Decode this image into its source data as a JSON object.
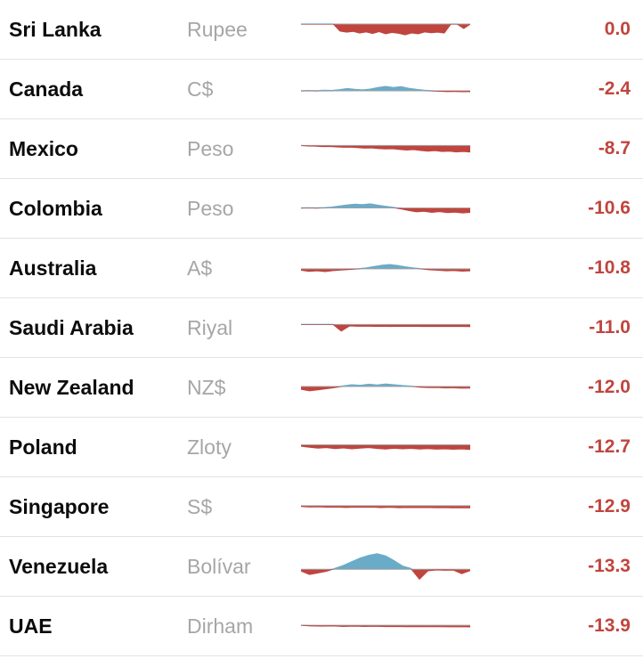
{
  "colors": {
    "negative": "#c0453e",
    "positive": "#6aabc8",
    "baseline": "#a0a0a0",
    "divider": "#e3e3e3",
    "currency_text": "#a6a6a6",
    "country_text": "#0c0c0c"
  },
  "chart_data": {
    "type": "table",
    "columns": [
      "country",
      "currency",
      "trend_sparkline",
      "pct_change"
    ],
    "sparkline_type": "area",
    "sparkline_baseline": 0,
    "legend": "blue area = above baseline, red area = below baseline",
    "rows": [
      {
        "country": "Sri Lanka",
        "currency": "Rupee",
        "pct_change": "0.0",
        "trend": [
          0,
          0,
          0,
          0,
          0,
          0,
          -2.6,
          -3.0,
          -2.7,
          -3.3,
          -2.9,
          -3.5,
          -2.8,
          -3.6,
          -3.1,
          -3.4,
          -4.0,
          -3.3,
          -3.6,
          -2.9,
          -3.2,
          -3.0,
          -3.3,
          0,
          0,
          -1.6,
          0
        ]
      },
      {
        "country": "Canada",
        "currency": "C$",
        "pct_change": "-2.4",
        "trend": [
          0,
          0.1,
          0,
          0.2,
          0.1,
          0.4,
          0.8,
          0.5,
          0.3,
          0.6,
          1.2,
          1.6,
          1.2,
          1.5,
          0.9,
          0.5,
          0.2,
          0,
          -0.15,
          -0.25,
          -0.2,
          -0.3,
          -0.25
        ]
      },
      {
        "country": "Mexico",
        "currency": "Peso",
        "pct_change": "-8.7",
        "trend": [
          0,
          -0.15,
          -0.2,
          -0.35,
          -0.3,
          -0.5,
          -0.6,
          -0.55,
          -0.75,
          -0.95,
          -0.85,
          -1.1,
          -1.25,
          -1.15,
          -1.45,
          -1.65,
          -1.5,
          -1.8,
          -2.05,
          -1.85,
          -2.2,
          -2.05,
          -2.35,
          -2.2,
          -2.4
        ]
      },
      {
        "country": "Colombia",
        "currency": "Peso",
        "pct_change": "-10.6",
        "trend": [
          0,
          0.05,
          0,
          0.1,
          0.3,
          0.7,
          1.1,
          1.4,
          1.2,
          1.5,
          1.0,
          0.6,
          0.2,
          -0.3,
          -0.9,
          -1.4,
          -1.2,
          -1.6,
          -1.3,
          -1.7,
          -1.5,
          -1.8,
          -1.6
        ]
      },
      {
        "country": "Australia",
        "currency": "A$",
        "pct_change": "-10.8",
        "trend": [
          -0.5,
          -0.9,
          -0.7,
          -1.0,
          -0.6,
          -0.4,
          -0.2,
          0,
          0.3,
          0.8,
          1.3,
          1.6,
          1.2,
          0.7,
          0.3,
          0,
          -0.3,
          -0.5,
          -0.7,
          -0.6,
          -0.8,
          -0.7
        ]
      },
      {
        "country": "Saudi Arabia",
        "currency": "Riyal",
        "pct_change": "-11.0",
        "trend": [
          0,
          0,
          0,
          0,
          0,
          -2.4,
          -0.5,
          -0.6,
          -0.55,
          -0.65,
          -0.6,
          -0.7,
          -0.6,
          -0.65,
          -0.6,
          -0.7,
          -0.65,
          -0.7,
          -0.65,
          -0.7,
          -0.7,
          -0.75
        ]
      },
      {
        "country": "New Zealand",
        "currency": "NZ$",
        "pct_change": "-12.0",
        "trend": [
          -1.0,
          -1.6,
          -1.2,
          -0.8,
          -0.4,
          0.2,
          0.6,
          0.4,
          0.8,
          0.5,
          0.9,
          0.6,
          0.3,
          0.1,
          -0.2,
          -0.4,
          -0.35,
          -0.5,
          -0.45,
          -0.6,
          -0.55
        ]
      },
      {
        "country": "Poland",
        "currency": "Zloty",
        "pct_change": "-12.7",
        "trend": [
          -0.5,
          -0.9,
          -1.2,
          -1.0,
          -1.4,
          -1.15,
          -1.45,
          -1.2,
          -1.0,
          -1.35,
          -1.55,
          -1.25,
          -1.45,
          -1.3,
          -1.55,
          -1.4,
          -1.6,
          -1.45,
          -1.65,
          -1.5,
          -1.7
        ]
      },
      {
        "country": "Singapore",
        "currency": "S$",
        "pct_change": "-12.9",
        "trend": [
          -0.25,
          -0.45,
          -0.35,
          -0.55,
          -0.45,
          -0.6,
          -0.5,
          -0.55,
          -0.5,
          -0.65,
          -0.55,
          -0.7,
          -0.6,
          -0.65,
          -0.6,
          -0.7,
          -0.65,
          -0.75,
          -0.7,
          -0.75
        ]
      },
      {
        "country": "Venezuela",
        "currency": "Bolívar",
        "pct_change": "-13.3",
        "trend": [
          -0.6,
          -1.9,
          -1.3,
          -0.7,
          0.3,
          1.4,
          2.8,
          4.2,
          5.2,
          5.8,
          5.0,
          3.2,
          1.2,
          0.3,
          -3.6,
          -0.5,
          -0.2,
          -0.3,
          -0.25,
          -1.6,
          -0.4
        ]
      },
      {
        "country": "UAE",
        "currency": "Dirham",
        "pct_change": "-13.9",
        "trend": [
          0,
          -0.2,
          -0.3,
          -0.2,
          -0.4,
          -0.3,
          -0.4,
          -0.35,
          -0.45,
          -0.4,
          -0.5,
          -0.45,
          -0.5,
          -0.48,
          -0.55,
          -0.5,
          -0.6
        ]
      }
    ]
  }
}
